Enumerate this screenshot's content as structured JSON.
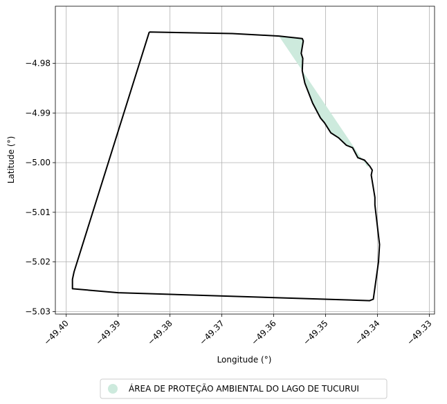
{
  "chart_data": {
    "type": "map",
    "xlabel": "Longitude (°)",
    "ylabel": "Latitude (°)",
    "xlim": [
      -49.4021,
      -49.329
    ],
    "ylim": [
      -5.0305,
      -4.9685
    ],
    "xticks": [
      -49.4,
      -49.39,
      -49.38,
      -49.37,
      -49.36,
      -49.35,
      -49.34,
      -49.33
    ],
    "xtick_labels": [
      "−49.40",
      "−49.39",
      "−49.38",
      "−49.37",
      "−49.36",
      "−49.35",
      "−49.34",
      "−49.33"
    ],
    "yticks": [
      -4.98,
      -4.99,
      -5.0,
      -5.01,
      -5.02,
      -5.03
    ],
    "ytick_labels": [
      "−4.98",
      "−4.99",
      "−5.00",
      "−5.01",
      "−5.02",
      "−5.03"
    ],
    "grid": true,
    "legend_position": "bottom-center",
    "legend": [
      {
        "label": "ÁREA DE PROTEÇÃO AMBIENTAL DO LAGO DE TUCURUI",
        "color": "#cdeadd"
      }
    ],
    "boundary": {
      "color": "#000000",
      "points": [
        [
          -49.384,
          -4.9737
        ],
        [
          -49.368,
          -4.974
        ],
        [
          -49.359,
          -4.9745
        ],
        [
          -49.3545,
          -4.975
        ],
        [
          -49.3543,
          -4.9755
        ],
        [
          -49.3547,
          -4.978
        ],
        [
          -49.3544,
          -4.979
        ],
        [
          -49.3545,
          -4.9815
        ],
        [
          -49.354,
          -4.984
        ],
        [
          -49.3525,
          -4.988
        ],
        [
          -49.351,
          -4.991
        ],
        [
          -49.3502,
          -4.992
        ],
        [
          -49.349,
          -4.994
        ],
        [
          -49.3475,
          -4.995
        ],
        [
          -49.346,
          -4.9965
        ],
        [
          -49.3448,
          -4.997
        ],
        [
          -49.3438,
          -4.999
        ],
        [
          -49.3425,
          -4.9995
        ],
        [
          -49.3415,
          -5.0007
        ],
        [
          -49.341,
          -5.0015
        ],
        [
          -49.3412,
          -5.0025
        ],
        [
          -49.3405,
          -5.007
        ],
        [
          -49.3405,
          -5.0085
        ],
        [
          -49.3396,
          -5.0165
        ],
        [
          -49.3398,
          -5.02
        ],
        [
          -49.34,
          -5.0215
        ],
        [
          -49.3402,
          -5.023
        ],
        [
          -49.3408,
          -5.0275
        ],
        [
          -49.3415,
          -5.0278
        ],
        [
          -49.39,
          -5.0262
        ],
        [
          -49.3988,
          -5.0254
        ],
        [
          -49.3988,
          -5.0235
        ],
        [
          -49.3985,
          -5.022
        ],
        [
          -49.384,
          -4.9737
        ]
      ]
    },
    "protected_area": {
      "color": "#cdeadd",
      "points": [
        [
          -49.359,
          -4.9745
        ],
        [
          -49.3545,
          -4.975
        ],
        [
          -49.3543,
          -4.9755
        ],
        [
          -49.3547,
          -4.978
        ],
        [
          -49.3544,
          -4.979
        ],
        [
          -49.3545,
          -4.9815
        ],
        [
          -49.354,
          -4.984
        ],
        [
          -49.3525,
          -4.988
        ],
        [
          -49.351,
          -4.991
        ],
        [
          -49.3502,
          -4.992
        ],
        [
          -49.349,
          -4.994
        ],
        [
          -49.3475,
          -4.995
        ],
        [
          -49.346,
          -4.9965
        ],
        [
          -49.3448,
          -4.997
        ],
        [
          -49.3438,
          -4.999
        ],
        [
          -49.3425,
          -4.9995
        ],
        [
          -49.3415,
          -5.0007
        ],
        [
          -49.342,
          -5.0008
        ],
        [
          -49.359,
          -4.9745
        ]
      ]
    }
  }
}
